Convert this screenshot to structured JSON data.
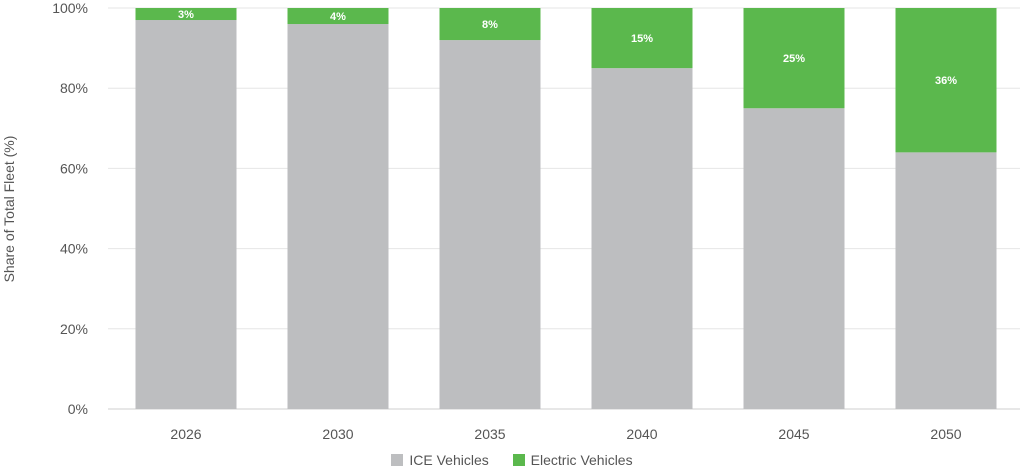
{
  "chart_data": {
    "type": "bar",
    "stacked": true,
    "categories": [
      "2026",
      "2030",
      "2035",
      "2040",
      "2045",
      "2050"
    ],
    "series": [
      {
        "name": "ICE Vehicles",
        "color": "#bdbec0",
        "values": [
          97,
          96,
          92,
          85,
          75,
          64
        ]
      },
      {
        "name": "Electric Vehicles",
        "color": "#5bb84d",
        "values": [
          3,
          4,
          8,
          15,
          25,
          36
        ],
        "data_labels": [
          "3%",
          "4%",
          "8%",
          "15%",
          "25%",
          "36%"
        ]
      }
    ],
    "ylabel": "Share of Total Fleet (%)",
    "ylim": [
      0,
      100
    ],
    "yticks": [
      "0%",
      "20%",
      "40%",
      "60%",
      "80%",
      "100%"
    ],
    "grid": true,
    "legend_position": "bottom-center"
  }
}
